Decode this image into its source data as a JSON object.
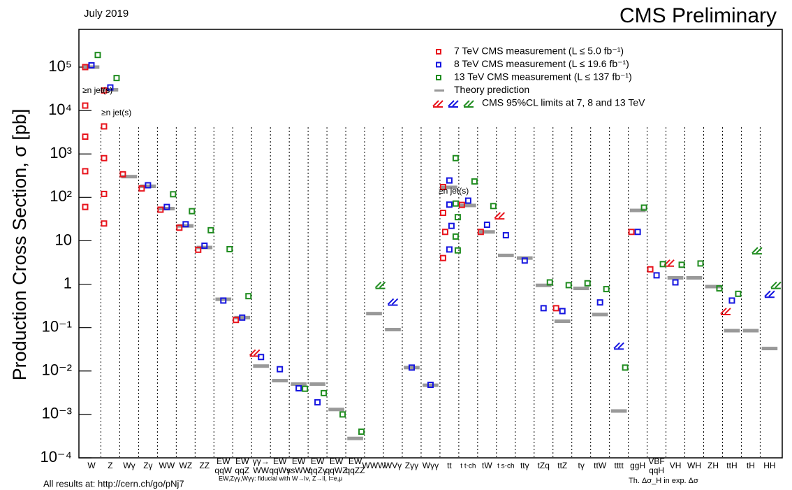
{
  "chart_data": {
    "type": "scatter",
    "title": "CMS Preliminary",
    "subtitle": "July 2019",
    "y_label": "Production Cross Section,  σ [pb]",
    "annotations": [
      "≥n jet(s)",
      "≥n jet(s)",
      "≥n jet(s)"
    ],
    "footnotes": [
      "All results at: http://cern.ch/go/pNj7",
      "EW,Zγγ,Wγγ: fiducial with W→lν, Z→ll, l=e,μ",
      "Th. Δσ_H in exp. Δσ"
    ],
    "log_y": true,
    "ylim": [
      0.0001,
      740000
    ],
    "yticks": [
      {
        "value": 0.0001,
        "label": "10⁻⁴"
      },
      {
        "value": 0.001,
        "label": "10⁻³"
      },
      {
        "value": 0.01,
        "label": "10⁻²"
      },
      {
        "value": 0.1,
        "label": "10⁻¹"
      },
      1,
      10,
      {
        "value": 100,
        "label": "10²"
      },
      {
        "value": 1000,
        "label": "10³"
      },
      {
        "value": 10000,
        "label": "10⁴"
      },
      {
        "value": 100000,
        "label": "10⁵"
      }
    ],
    "categories": [
      "W",
      "Z",
      "Wγ",
      "Zγ",
      "WW",
      "WZ",
      "ZZ",
      "EW\nqqW",
      "EW\nqqZ",
      "γγ→\nWW",
      "EW\nqqWγ",
      "EW\nssWW",
      "EW\nqqZγ",
      "EW\nqqWZ",
      "EW\nqqZZ",
      "WWW",
      "WVγ",
      "Zγγ",
      "Wγγ",
      "tt",
      "t t-ch",
      "tW",
      "t s-ch",
      "ttγ",
      "tZq",
      "ttZ",
      "tγ",
      "ttW",
      "tttt",
      "ggH",
      "VBF\nqqH",
      "VH",
      "WH",
      "ZH",
      "ttH",
      "tH",
      "HH"
    ],
    "series": [
      {
        "name": "7 TeV CMS measurement (L ≤ 5.0 fb⁻¹)",
        "color": "#e8141c",
        "values": [
          100000,
          29000,
          340,
          160,
          52,
          20,
          6.2,
          null,
          0.15,
          null,
          null,
          null,
          null,
          null,
          null,
          null,
          null,
          null,
          null,
          173,
          67,
          16,
          null,
          null,
          null,
          0.28,
          null,
          null,
          null,
          16,
          2.2,
          null,
          null,
          null,
          null,
          null,
          null
        ],
        "limits": [
          null,
          null,
          null,
          null,
          null,
          null,
          null,
          null,
          null,
          0.022,
          null,
          null,
          null,
          null,
          null,
          null,
          null,
          null,
          null,
          null,
          null,
          null,
          32,
          null,
          null,
          null,
          null,
          null,
          null,
          null,
          null,
          2.6,
          null,
          null,
          0.2,
          null,
          null
        ],
        "jets": {
          "W": [
            13000,
            2500,
            400,
            60
          ],
          "Z": [
            4300,
            800,
            120,
            25
          ],
          "tt": [
            44,
            16,
            4
          ]
        }
      },
      {
        "name": "8 TeV CMS measurement (L ≤ 19.6 fb⁻¹)",
        "color": "#1414e0",
        "values": [
          110000,
          34000,
          null,
          190,
          60,
          24,
          7.7,
          0.42,
          0.17,
          0.021,
          0.011,
          0.004,
          0.0019,
          null,
          null,
          null,
          null,
          0.012,
          0.0048,
          245,
          84,
          23.4,
          13.4,
          3.5,
          0.28,
          0.24,
          null,
          0.38,
          null,
          16,
          1.6,
          1.1,
          null,
          null,
          0.42,
          null,
          null
        ],
        "limits": [
          null,
          null,
          null,
          null,
          null,
          null,
          null,
          null,
          null,
          null,
          null,
          null,
          null,
          null,
          null,
          null,
          0.33,
          null,
          null,
          null,
          null,
          null,
          null,
          null,
          null,
          null,
          null,
          null,
          0.032,
          null,
          null,
          null,
          null,
          null,
          null,
          null,
          0.5
        ],
        "jets": {
          "tt": [
            68,
            22,
            6.3
          ]
        }
      },
      {
        "name": "13 TeV CMS measurement (L ≤ 137 fb⁻¹)",
        "color": "#1f8c1f",
        "values": [
          190000,
          56000,
          null,
          null,
          118,
          48,
          17.5,
          6.4,
          0.53,
          null,
          null,
          0.0039,
          0.0031,
          0.001,
          0.0004,
          null,
          null,
          null,
          null,
          800,
          232,
          63,
          null,
          null,
          1.1,
          0.95,
          1.05,
          0.77,
          0.012,
          58,
          2.9,
          2.8,
          3,
          0.8,
          0.6,
          null,
          null
        ],
        "limits": [
          null,
          null,
          null,
          null,
          null,
          null,
          null,
          null,
          null,
          null,
          null,
          null,
          null,
          null,
          null,
          0.8,
          null,
          null,
          null,
          null,
          null,
          null,
          null,
          null,
          null,
          null,
          null,
          null,
          null,
          null,
          null,
          null,
          null,
          null,
          null,
          5,
          0.8
        ],
        "jets": {
          "tt": [
            72,
            35,
            12.5,
            6
          ]
        }
      }
    ],
    "theory": {
      "name": "Theory prediction",
      "color": "#999999",
      "values": [
        100000,
        30000,
        300,
        180,
        55,
        22,
        7,
        0.45,
        0.17,
        0.013,
        0.006,
        0.005,
        0.005,
        0.0013,
        0.00028,
        0.21,
        0.09,
        0.012,
        0.0047,
        170,
        65,
        16,
        4.6,
        4,
        0.94,
        0.14,
        0.8,
        0.2,
        0.0012,
        50,
        null,
        1.4,
        1.4,
        0.88,
        0.085,
        0.085,
        0.033
      ]
    },
    "limits_label": "CMS 95%CL limits at 7, 8 and 13 TeV",
    "legend": "top-right"
  }
}
